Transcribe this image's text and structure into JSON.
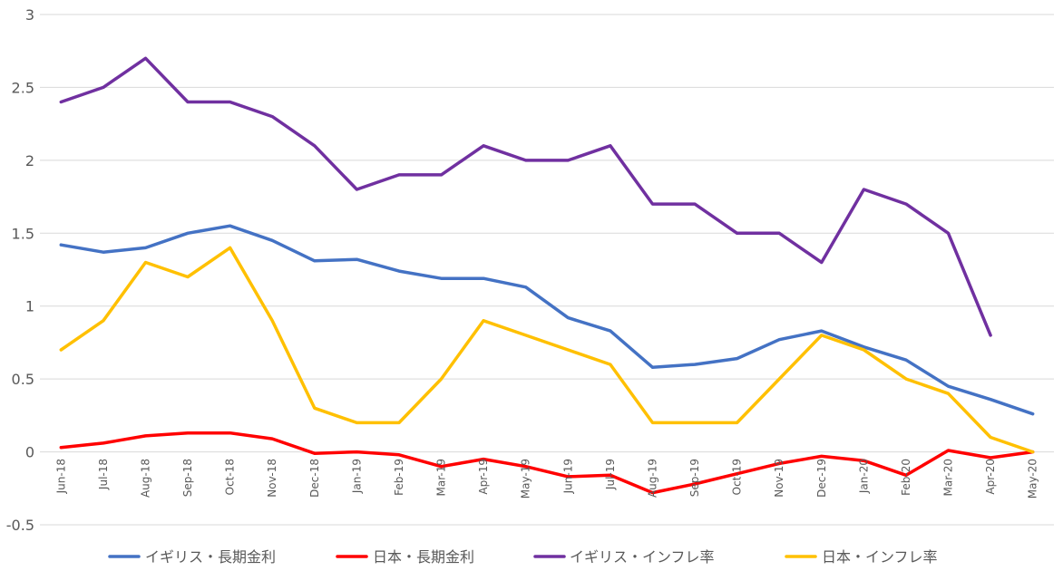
{
  "chart_data": {
    "type": "line",
    "title": "",
    "xlabel": "",
    "ylabel": "",
    "ylim": [
      -0.5,
      3
    ],
    "yticks": [
      "3",
      "2.5",
      "2",
      "1.5",
      "1",
      "0.5",
      "0",
      "-0.5"
    ],
    "grid": true,
    "legend_position": "bottom",
    "categories": [
      "Jun-18",
      "Jul-18",
      "Aug-18",
      "Sep-18",
      "Oct-18",
      "Nov-18",
      "Dec-18",
      "Jan-19",
      "Feb-19",
      "Mar-19",
      "Apr-19",
      "May-19",
      "Jun-19",
      "Jul-19",
      "Aug-19",
      "Sep-19",
      "Oct-19",
      "Nov-19",
      "Dec-19",
      "Jan-20",
      "Feb-20",
      "Mar-20",
      "Apr-20",
      "May-20"
    ],
    "series": [
      {
        "name": "イギリス・長期金利",
        "color": "#4472C4",
        "values": [
          1.42,
          1.37,
          1.4,
          1.5,
          1.55,
          1.45,
          1.31,
          1.32,
          1.24,
          1.19,
          1.19,
          1.13,
          0.92,
          0.83,
          0.58,
          0.6,
          0.64,
          0.77,
          0.83,
          0.72,
          0.63,
          0.45,
          0.36,
          0.26
        ]
      },
      {
        "name": "日本・長期金利",
        "color": "#FF0000",
        "values": [
          0.03,
          0.06,
          0.11,
          0.13,
          0.13,
          0.09,
          -0.01,
          0.0,
          -0.02,
          -0.1,
          -0.05,
          -0.1,
          -0.17,
          -0.16,
          -0.28,
          -0.22,
          -0.15,
          -0.08,
          -0.03,
          -0.06,
          -0.16,
          0.01,
          -0.04,
          0.0
        ]
      },
      {
        "name": "イギリス・インフレ率",
        "color": "#7030A0",
        "values": [
          2.4,
          2.5,
          2.7,
          2.4,
          2.4,
          2.3,
          2.1,
          1.8,
          1.9,
          1.9,
          2.1,
          2.0,
          2.0,
          2.1,
          1.7,
          1.7,
          1.5,
          1.5,
          1.3,
          1.8,
          1.7,
          1.5,
          0.8,
          null
        ]
      },
      {
        "name": "日本・インフレ率",
        "color": "#FFC000",
        "values": [
          0.7,
          0.9,
          1.3,
          1.2,
          1.4,
          0.9,
          0.3,
          0.2,
          0.2,
          0.5,
          0.9,
          0.8,
          0.7,
          0.6,
          0.2,
          0.2,
          0.2,
          0.5,
          0.8,
          0.7,
          0.5,
          0.4,
          0.1,
          0.0
        ]
      }
    ]
  }
}
